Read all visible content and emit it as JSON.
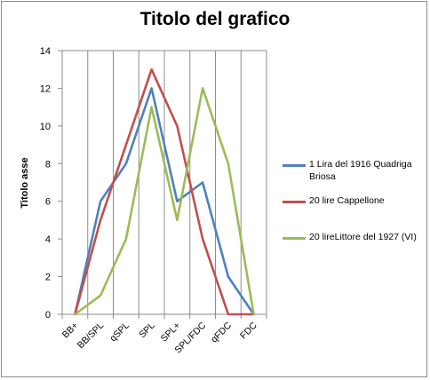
{
  "chart_data": {
    "type": "line",
    "title": "Titolo del grafico",
    "xlabel": "",
    "ylabel": "Titolo asse",
    "ylim": [
      0,
      14
    ],
    "yticks": [
      0,
      2,
      4,
      6,
      8,
      10,
      12,
      14
    ],
    "grid": "vertical",
    "legend_position": "right",
    "categories": [
      "BB+",
      "BB/SPL",
      "qSPL",
      "SPL",
      "SPL+",
      "SPL/FDC",
      "qFDC",
      "FDC"
    ],
    "series": [
      {
        "name": "1 Lira del 1916 Quadriga Briosa",
        "color": "#4f81bd",
        "values": [
          0,
          6,
          8,
          12,
          6,
          7,
          2,
          0
        ]
      },
      {
        "name": "20 lire Cappellone",
        "color": "#c0504d",
        "values": [
          0,
          5,
          9,
          13,
          10,
          4,
          0,
          0
        ]
      },
      {
        "name": "20 lireLittore del 1927 (VI)",
        "color": "#9bbb59",
        "values": [
          0,
          1,
          4,
          11,
          5,
          12,
          8,
          0
        ]
      }
    ]
  }
}
